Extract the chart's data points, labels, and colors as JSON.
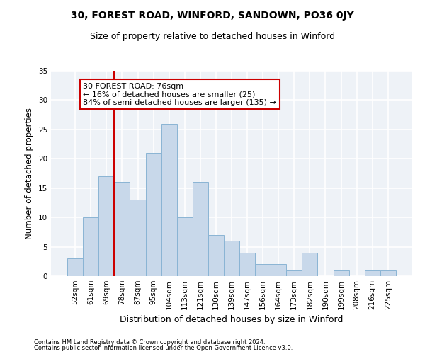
{
  "title1": "30, FOREST ROAD, WINFORD, SANDOWN, PO36 0JY",
  "title2": "Size of property relative to detached houses in Winford",
  "xlabel": "Distribution of detached houses by size in Winford",
  "ylabel": "Number of detached properties",
  "categories": [
    "52sqm",
    "61sqm",
    "69sqm",
    "78sqm",
    "87sqm",
    "95sqm",
    "104sqm",
    "113sqm",
    "121sqm",
    "130sqm",
    "139sqm",
    "147sqm",
    "156sqm",
    "164sqm",
    "173sqm",
    "182sqm",
    "190sqm",
    "199sqm",
    "208sqm",
    "216sqm",
    "225sqm"
  ],
  "values": [
    3,
    10,
    17,
    16,
    13,
    21,
    26,
    10,
    16,
    7,
    6,
    4,
    2,
    2,
    1,
    4,
    0,
    1,
    0,
    1,
    1
  ],
  "bar_color": "#c8d8ea",
  "bar_edge_color": "#8ab4d4",
  "vline_color": "#cc0000",
  "vline_x": 2.5,
  "annotation_text": "30 FOREST ROAD: 76sqm\n← 16% of detached houses are smaller (25)\n84% of semi-detached houses are larger (135) →",
  "annotation_box_color": "white",
  "annotation_box_edge": "#cc0000",
  "ylim": [
    0,
    35
  ],
  "yticks": [
    0,
    5,
    10,
    15,
    20,
    25,
    30,
    35
  ],
  "bg_color": "#eef2f7",
  "grid_color": "#ffffff",
  "footer1": "Contains HM Land Registry data © Crown copyright and database right 2024.",
  "footer2": "Contains public sector information licensed under the Open Government Licence v3.0.",
  "title1_fontsize": 10,
  "title2_fontsize": 9,
  "xlabel_fontsize": 9,
  "ylabel_fontsize": 8.5,
  "tick_fontsize": 7.5,
  "annotation_fontsize": 8,
  "footer_fontsize": 6
}
